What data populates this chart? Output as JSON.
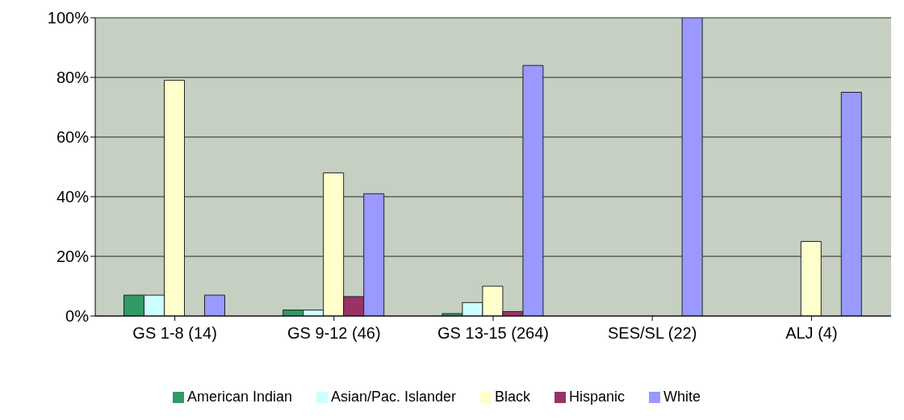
{
  "chart_data": {
    "type": "bar",
    "categories": [
      "GS 1-8 (14)",
      "GS 9-12 (46)",
      "GS 13-15 (264)",
      "SES/SL (22)",
      "ALJ (4)"
    ],
    "series": [
      {
        "name": "American Indian",
        "color": "#339966",
        "values": [
          7,
          2,
          0.8,
          0,
          0
        ]
      },
      {
        "name": "Asian/Pac. Islander",
        "color": "#ccffff",
        "values": [
          7,
          2,
          4.5,
          0,
          0
        ]
      },
      {
        "name": "Black",
        "color": "#ffffcc",
        "values": [
          79,
          48,
          10,
          0,
          25
        ]
      },
      {
        "name": "Hispanic",
        "color": "#993366",
        "values": [
          0,
          6.5,
          1.5,
          0,
          0
        ]
      },
      {
        "name": "White",
        "color": "#9999ff",
        "values": [
          7,
          41,
          84,
          100,
          75
        ]
      }
    ],
    "ylim": [
      0,
      100
    ],
    "yticks": [
      {
        "value": 0,
        "label": "0%"
      },
      {
        "value": 20,
        "label": "20%"
      },
      {
        "value": 40,
        "label": "40%"
      },
      {
        "value": 60,
        "label": "60%"
      },
      {
        "value": 80,
        "label": "80%"
      },
      {
        "value": 100,
        "label": "100%"
      }
    ],
    "grid": "y",
    "legend": "bottom"
  }
}
